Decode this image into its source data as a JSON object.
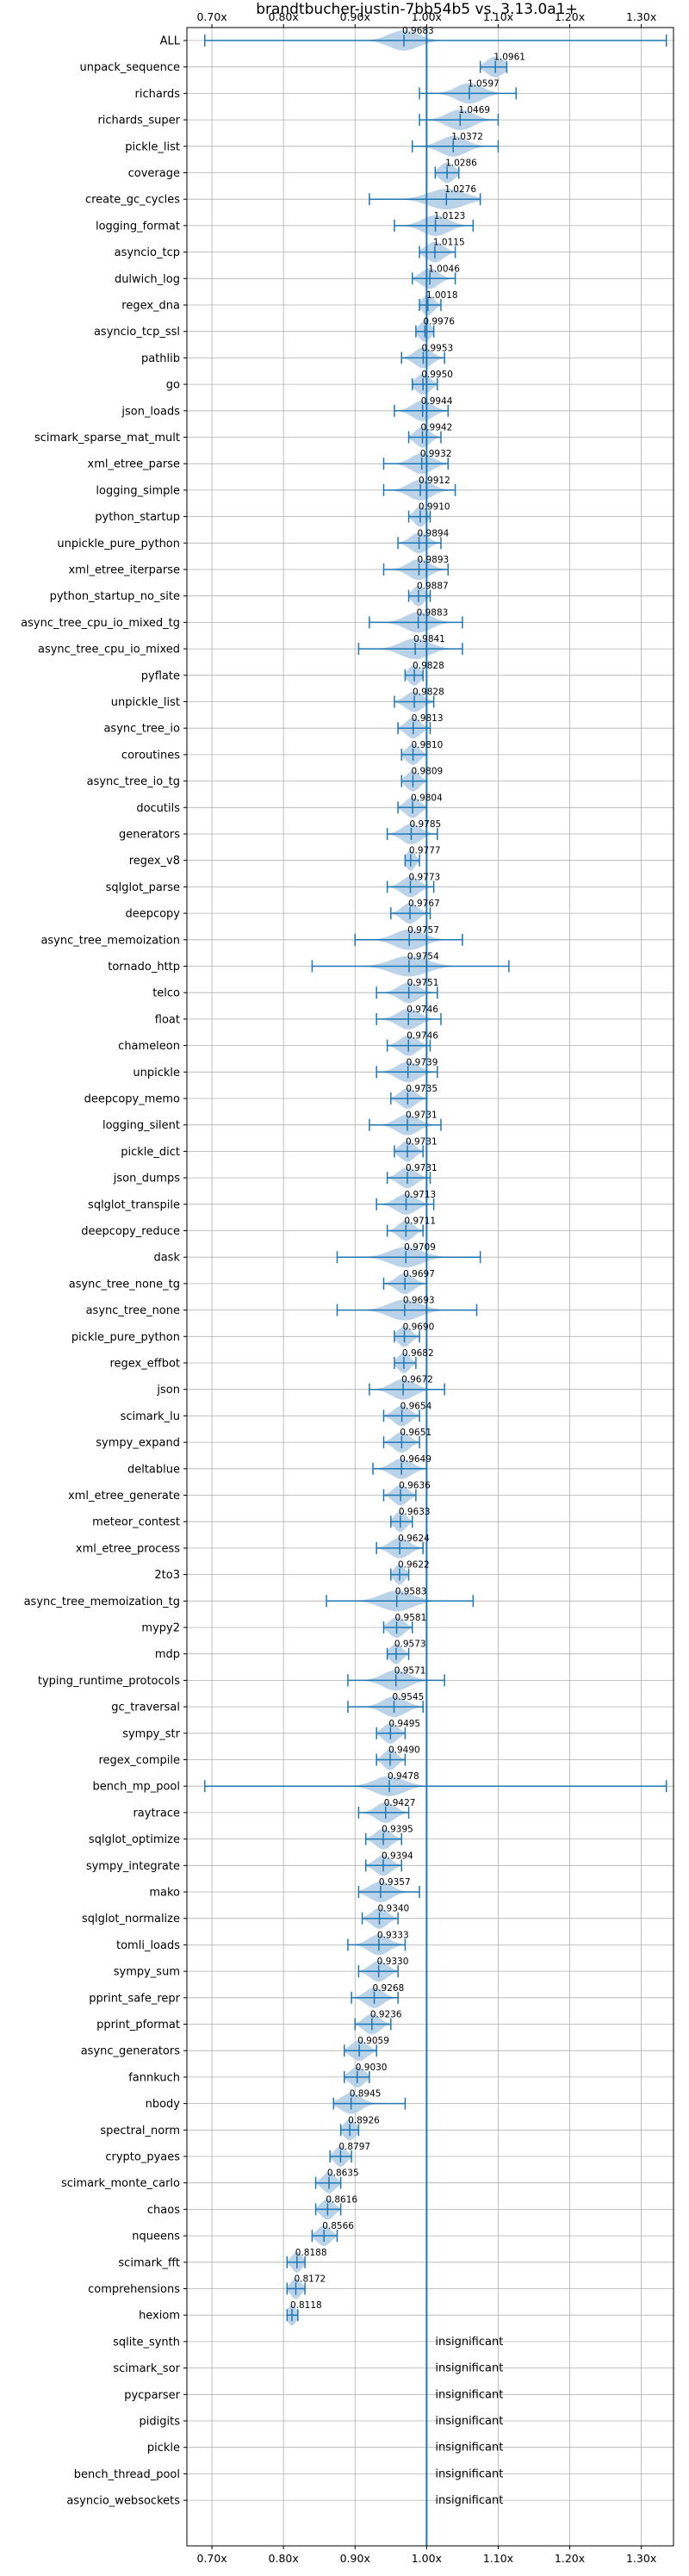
{
  "chart_data": {
    "type": "violin",
    "title": "brandtbucher-justin-7bb54b5 vs. 3.13.0a1+",
    "xlabel": "",
    "ylabel": "",
    "xlim": [
      0.665,
      1.345
    ],
    "x_ticks": [
      0.7,
      0.8,
      0.9,
      1.0,
      1.1,
      1.2,
      1.3
    ],
    "x_tick_labels": [
      "0.70x",
      "0.80x",
      "0.90x",
      "1.00x",
      "1.10x",
      "1.20x",
      "1.30x"
    ],
    "reference_line": 1.0,
    "grid": true,
    "ticks_on_top_and_bottom": true,
    "series_color": "#1f77b4",
    "violin_fill": "#aecbe4",
    "insignificant_text": "insignificant",
    "benchmarks": [
      {
        "name": "ALL",
        "label": "0.9683",
        "mean": 0.9683,
        "min": 0.69,
        "max": 1.335,
        "spread": 0.02
      },
      {
        "name": "unpack_sequence",
        "label": "1.0961",
        "mean": 1.0961,
        "min": 1.075,
        "max": 1.112,
        "spread": 0.012
      },
      {
        "name": "richards",
        "label": "1.0597",
        "mean": 1.0597,
        "min": 0.99,
        "max": 1.125,
        "spread": 0.018
      },
      {
        "name": "richards_super",
        "label": "1.0469",
        "mean": 1.0469,
        "min": 0.99,
        "max": 1.1,
        "spread": 0.018
      },
      {
        "name": "pickle_list",
        "label": "1.0372",
        "mean": 1.0372,
        "min": 0.98,
        "max": 1.1,
        "spread": 0.018
      },
      {
        "name": "coverage",
        "label": "1.0286",
        "mean": 1.0286,
        "min": 1.012,
        "max": 1.045,
        "spread": 0.01
      },
      {
        "name": "create_gc_cycles",
        "label": "1.0276",
        "mean": 1.0276,
        "min": 0.92,
        "max": 1.075,
        "spread": 0.025
      },
      {
        "name": "logging_format",
        "label": "1.0123",
        "mean": 1.0123,
        "min": 0.955,
        "max": 1.065,
        "spread": 0.018
      },
      {
        "name": "asyncio_tcp",
        "label": "1.0115",
        "mean": 1.0115,
        "min": 0.99,
        "max": 1.04,
        "spread": 0.012
      },
      {
        "name": "dulwich_log",
        "label": "1.0046",
        "mean": 1.0046,
        "min": 0.98,
        "max": 1.04,
        "spread": 0.012
      },
      {
        "name": "regex_dna",
        "label": "1.0018",
        "mean": 1.0018,
        "min": 0.99,
        "max": 1.02,
        "spread": 0.008
      },
      {
        "name": "asyncio_tcp_ssl",
        "label": "0.9976",
        "mean": 0.9976,
        "min": 0.985,
        "max": 1.01,
        "spread": 0.008
      },
      {
        "name": "pathlib",
        "label": "0.9953",
        "mean": 0.9953,
        "min": 0.965,
        "max": 1.025,
        "spread": 0.012
      },
      {
        "name": "go",
        "label": "0.9950",
        "mean": 0.995,
        "min": 0.98,
        "max": 1.015,
        "spread": 0.01
      },
      {
        "name": "json_loads",
        "label": "0.9944",
        "mean": 0.9944,
        "min": 0.955,
        "max": 1.03,
        "spread": 0.014
      },
      {
        "name": "scimark_sparse_mat_mult",
        "label": "0.9942",
        "mean": 0.9942,
        "min": 0.975,
        "max": 1.02,
        "spread": 0.01
      },
      {
        "name": "xml_etree_parse",
        "label": "0.9932",
        "mean": 0.9932,
        "min": 0.94,
        "max": 1.03,
        "spread": 0.015
      },
      {
        "name": "logging_simple",
        "label": "0.9912",
        "mean": 0.9912,
        "min": 0.94,
        "max": 1.04,
        "spread": 0.016
      },
      {
        "name": "python_startup",
        "label": "0.9910",
        "mean": 0.991,
        "min": 0.975,
        "max": 1.005,
        "spread": 0.008
      },
      {
        "name": "unpickle_pure_python",
        "label": "0.9894",
        "mean": 0.9894,
        "min": 0.96,
        "max": 1.02,
        "spread": 0.012
      },
      {
        "name": "xml_etree_iterparse",
        "label": "0.9893",
        "mean": 0.9893,
        "min": 0.94,
        "max": 1.03,
        "spread": 0.015
      },
      {
        "name": "python_startup_no_site",
        "label": "0.9887",
        "mean": 0.9887,
        "min": 0.975,
        "max": 1.005,
        "spread": 0.008
      },
      {
        "name": "async_tree_cpu_io_mixed_tg",
        "label": "0.9883",
        "mean": 0.9883,
        "min": 0.92,
        "max": 1.05,
        "spread": 0.018
      },
      {
        "name": "async_tree_cpu_io_mixed",
        "label": "0.9841",
        "mean": 0.9841,
        "min": 0.905,
        "max": 1.05,
        "spread": 0.02
      },
      {
        "name": "pyflate",
        "label": "0.9828",
        "mean": 0.9828,
        "min": 0.97,
        "max": 0.995,
        "spread": 0.008
      },
      {
        "name": "unpickle_list",
        "label": "0.9828",
        "mean": 0.9828,
        "min": 0.955,
        "max": 1.01,
        "spread": 0.012
      },
      {
        "name": "async_tree_io",
        "label": "0.9813",
        "mean": 0.9813,
        "min": 0.96,
        "max": 1.005,
        "spread": 0.01
      },
      {
        "name": "coroutines",
        "label": "0.9810",
        "mean": 0.981,
        "min": 0.965,
        "max": 1.0,
        "spread": 0.009
      },
      {
        "name": "async_tree_io_tg",
        "label": "0.9809",
        "mean": 0.9809,
        "min": 0.965,
        "max": 1.0,
        "spread": 0.009
      },
      {
        "name": "docutils",
        "label": "0.9804",
        "mean": 0.9804,
        "min": 0.96,
        "max": 1.0,
        "spread": 0.01
      },
      {
        "name": "generators",
        "label": "0.9785",
        "mean": 0.9785,
        "min": 0.945,
        "max": 1.015,
        "spread": 0.013
      },
      {
        "name": "regex_v8",
        "label": "0.9777",
        "mean": 0.9777,
        "min": 0.97,
        "max": 0.99,
        "spread": 0.006
      },
      {
        "name": "sqlglot_parse",
        "label": "0.9773",
        "mean": 0.9773,
        "min": 0.945,
        "max": 1.01,
        "spread": 0.012
      },
      {
        "name": "deepcopy",
        "label": "0.9767",
        "mean": 0.9767,
        "min": 0.95,
        "max": 1.005,
        "spread": 0.011
      },
      {
        "name": "async_tree_memoization",
        "label": "0.9757",
        "mean": 0.9757,
        "min": 0.9,
        "max": 1.05,
        "spread": 0.02
      },
      {
        "name": "tornado_http",
        "label": "0.9754",
        "mean": 0.9754,
        "min": 0.84,
        "max": 1.115,
        "spread": 0.025
      },
      {
        "name": "telco",
        "label": "0.9751",
        "mean": 0.9751,
        "min": 0.93,
        "max": 1.015,
        "spread": 0.014
      },
      {
        "name": "float",
        "label": "0.9746",
        "mean": 0.9746,
        "min": 0.93,
        "max": 1.02,
        "spread": 0.015
      },
      {
        "name": "chameleon",
        "label": "0.9746",
        "mean": 0.9746,
        "min": 0.945,
        "max": 1.005,
        "spread": 0.012
      },
      {
        "name": "unpickle",
        "label": "0.9739",
        "mean": 0.9739,
        "min": 0.93,
        "max": 1.015,
        "spread": 0.015
      },
      {
        "name": "deepcopy_memo",
        "label": "0.9735",
        "mean": 0.9735,
        "min": 0.95,
        "max": 1.0,
        "spread": 0.011
      },
      {
        "name": "logging_silent",
        "label": "0.9731",
        "mean": 0.9731,
        "min": 0.92,
        "max": 1.02,
        "spread": 0.015
      },
      {
        "name": "pickle_dict",
        "label": "0.9731",
        "mean": 0.9731,
        "min": 0.955,
        "max": 0.995,
        "spread": 0.01
      },
      {
        "name": "json_dumps",
        "label": "0.9731",
        "mean": 0.9731,
        "min": 0.945,
        "max": 1.005,
        "spread": 0.012
      },
      {
        "name": "sqlglot_transpile",
        "label": "0.9713",
        "mean": 0.9713,
        "min": 0.93,
        "max": 1.01,
        "spread": 0.014
      },
      {
        "name": "deepcopy_reduce",
        "label": "0.9711",
        "mean": 0.9711,
        "min": 0.945,
        "max": 0.995,
        "spread": 0.01
      },
      {
        "name": "dask",
        "label": "0.9709",
        "mean": 0.9709,
        "min": 0.875,
        "max": 1.075,
        "spread": 0.022
      },
      {
        "name": "async_tree_none_tg",
        "label": "0.9697",
        "mean": 0.9697,
        "min": 0.94,
        "max": 1.0,
        "spread": 0.012
      },
      {
        "name": "async_tree_none",
        "label": "0.9693",
        "mean": 0.9693,
        "min": 0.875,
        "max": 1.07,
        "spread": 0.022
      },
      {
        "name": "pickle_pure_python",
        "label": "0.9690",
        "mean": 0.969,
        "min": 0.955,
        "max": 0.99,
        "spread": 0.009
      },
      {
        "name": "regex_effbot",
        "label": "0.9682",
        "mean": 0.9682,
        "min": 0.955,
        "max": 0.985,
        "spread": 0.008
      },
      {
        "name": "json",
        "label": "0.9672",
        "mean": 0.9672,
        "min": 0.92,
        "max": 1.025,
        "spread": 0.016
      },
      {
        "name": "scimark_lu",
        "label": "0.9654",
        "mean": 0.9654,
        "min": 0.94,
        "max": 0.99,
        "spread": 0.011
      },
      {
        "name": "sympy_expand",
        "label": "0.9651",
        "mean": 0.9651,
        "min": 0.94,
        "max": 0.99,
        "spread": 0.011
      },
      {
        "name": "deltablue",
        "label": "0.9649",
        "mean": 0.9649,
        "min": 0.925,
        "max": 1.0,
        "spread": 0.014
      },
      {
        "name": "xml_etree_generate",
        "label": "0.9636",
        "mean": 0.9636,
        "min": 0.94,
        "max": 0.985,
        "spread": 0.01
      },
      {
        "name": "meteor_contest",
        "label": "0.9633",
        "mean": 0.9633,
        "min": 0.95,
        "max": 0.98,
        "spread": 0.008
      },
      {
        "name": "xml_etree_process",
        "label": "0.9624",
        "mean": 0.9624,
        "min": 0.93,
        "max": 0.995,
        "spread": 0.013
      },
      {
        "name": "2to3",
        "label": "0.9622",
        "mean": 0.9622,
        "min": 0.95,
        "max": 0.975,
        "spread": 0.007
      },
      {
        "name": "async_tree_memoization_tg",
        "label": "0.9583",
        "mean": 0.9583,
        "min": 0.86,
        "max": 1.065,
        "spread": 0.022
      },
      {
        "name": "mypy2",
        "label": "0.9581",
        "mean": 0.9581,
        "min": 0.94,
        "max": 0.98,
        "spread": 0.01
      },
      {
        "name": "mdp",
        "label": "0.9573",
        "mean": 0.9573,
        "min": 0.945,
        "max": 0.975,
        "spread": 0.008
      },
      {
        "name": "typing_runtime_protocols",
        "label": "0.9571",
        "mean": 0.9571,
        "min": 0.89,
        "max": 1.025,
        "spread": 0.018
      },
      {
        "name": "gc_traversal",
        "label": "0.9545",
        "mean": 0.9545,
        "min": 0.89,
        "max": 0.995,
        "spread": 0.016
      },
      {
        "name": "sympy_str",
        "label": "0.9495",
        "mean": 0.9495,
        "min": 0.93,
        "max": 0.97,
        "spread": 0.01
      },
      {
        "name": "regex_compile",
        "label": "0.9490",
        "mean": 0.949,
        "min": 0.93,
        "max": 0.97,
        "spread": 0.009
      },
      {
        "name": "bench_mp_pool",
        "label": "0.9478",
        "mean": 0.9478,
        "min": 0.69,
        "max": 1.335,
        "spread": 0.02
      },
      {
        "name": "raytrace",
        "label": "0.9427",
        "mean": 0.9427,
        "min": 0.905,
        "max": 0.975,
        "spread": 0.013
      },
      {
        "name": "sqlglot_optimize",
        "label": "0.9395",
        "mean": 0.9395,
        "min": 0.915,
        "max": 0.965,
        "spread": 0.011
      },
      {
        "name": "sympy_integrate",
        "label": "0.9394",
        "mean": 0.9394,
        "min": 0.915,
        "max": 0.965,
        "spread": 0.011
      },
      {
        "name": "mako",
        "label": "0.9357",
        "mean": 0.9357,
        "min": 0.905,
        "max": 0.99,
        "spread": 0.015
      },
      {
        "name": "sqlglot_normalize",
        "label": "0.9340",
        "mean": 0.934,
        "min": 0.91,
        "max": 0.96,
        "spread": 0.011
      },
      {
        "name": "tomli_loads",
        "label": "0.9333",
        "mean": 0.9333,
        "min": 0.89,
        "max": 0.97,
        "spread": 0.014
      },
      {
        "name": "sympy_sum",
        "label": "0.9330",
        "mean": 0.933,
        "min": 0.905,
        "max": 0.96,
        "spread": 0.012
      },
      {
        "name": "pprint_safe_repr",
        "label": "0.9268",
        "mean": 0.9268,
        "min": 0.895,
        "max": 0.96,
        "spread": 0.012
      },
      {
        "name": "pprint_pformat",
        "label": "0.9236",
        "mean": 0.9236,
        "min": 0.9,
        "max": 0.95,
        "spread": 0.011
      },
      {
        "name": "async_generators",
        "label": "0.9059",
        "mean": 0.9059,
        "min": 0.885,
        "max": 0.93,
        "spread": 0.011
      },
      {
        "name": "fannkuch",
        "label": "0.9030",
        "mean": 0.903,
        "min": 0.885,
        "max": 0.92,
        "spread": 0.01
      },
      {
        "name": "nbody",
        "label": "0.8945",
        "mean": 0.8945,
        "min": 0.87,
        "max": 0.97,
        "spread": 0.014
      },
      {
        "name": "spectral_norm",
        "label": "0.8926",
        "mean": 0.8926,
        "min": 0.88,
        "max": 0.905,
        "spread": 0.008
      },
      {
        "name": "crypto_pyaes",
        "label": "0.8797",
        "mean": 0.8797,
        "min": 0.865,
        "max": 0.895,
        "spread": 0.008
      },
      {
        "name": "scimark_monte_carlo",
        "label": "0.8635",
        "mean": 0.8635,
        "min": 0.845,
        "max": 0.88,
        "spread": 0.009
      },
      {
        "name": "chaos",
        "label": "0.8616",
        "mean": 0.8616,
        "min": 0.845,
        "max": 0.88,
        "spread": 0.009
      },
      {
        "name": "nqueens",
        "label": "0.8566",
        "mean": 0.8566,
        "min": 0.84,
        "max": 0.875,
        "spread": 0.009
      },
      {
        "name": "scimark_fft",
        "label": "0.8188",
        "mean": 0.8188,
        "min": 0.805,
        "max": 0.83,
        "spread": 0.007
      },
      {
        "name": "comprehensions",
        "label": "0.8172",
        "mean": 0.8172,
        "min": 0.805,
        "max": 0.83,
        "spread": 0.007
      },
      {
        "name": "hexiom",
        "label": "0.8118",
        "mean": 0.8118,
        "min": 0.805,
        "max": 0.82,
        "spread": 0.006
      },
      {
        "name": "sqlite_synth",
        "label": "",
        "insignificant": true
      },
      {
        "name": "scimark_sor",
        "label": "",
        "insignificant": true
      },
      {
        "name": "pycparser",
        "label": "",
        "insignificant": true
      },
      {
        "name": "pidigits",
        "label": "",
        "insignificant": true
      },
      {
        "name": "pickle",
        "label": "",
        "insignificant": true
      },
      {
        "name": "bench_thread_pool",
        "label": "",
        "insignificant": true
      },
      {
        "name": "asyncio_websockets",
        "label": "",
        "insignificant": true
      }
    ]
  }
}
